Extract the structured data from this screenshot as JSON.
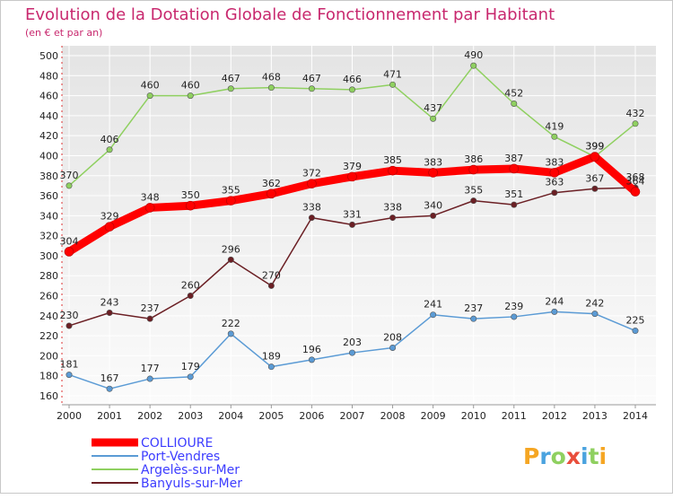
{
  "chart_data": {
    "type": "line",
    "title": "Evolution de la Dotation Globale de Fonctionnement par Habitant",
    "subtitle": "(en € et par an)",
    "x": [
      "2000",
      "2001",
      "2002",
      "2003",
      "2004",
      "2005",
      "2006",
      "2007",
      "2008",
      "2009",
      "2010",
      "2011",
      "2012",
      "2013",
      "2014"
    ],
    "ylim": [
      160,
      500
    ],
    "yticks": [
      160,
      180,
      200,
      220,
      240,
      260,
      280,
      300,
      320,
      340,
      360,
      380,
      400,
      420,
      440,
      460,
      480,
      500
    ],
    "series": [
      {
        "name": "COLLIOURE",
        "color": "#ff0000",
        "values": [
          304,
          329,
          348,
          350,
          355,
          362,
          372,
          379,
          385,
          383,
          386,
          387,
          383,
          399,
          364
        ]
      },
      {
        "name": "Port-Vendres",
        "color": "#5b9bd5",
        "values": [
          181,
          167,
          177,
          179,
          222,
          189,
          196,
          203,
          208,
          241,
          237,
          239,
          244,
          242,
          225
        ]
      },
      {
        "name": "Argelès-sur-Mer",
        "color": "#8fd060",
        "values": [
          370,
          406,
          460,
          460,
          467,
          468,
          467,
          466,
          471,
          437,
          490,
          452,
          419,
          399,
          432
        ]
      },
      {
        "name": "Banyuls-sur-Mer",
        "color": "#6b1f24",
        "values": [
          230,
          243,
          237,
          260,
          296,
          270,
          338,
          331,
          338,
          340,
          355,
          351,
          363,
          367,
          368
        ]
      }
    ],
    "watermark": "Proxiti"
  }
}
